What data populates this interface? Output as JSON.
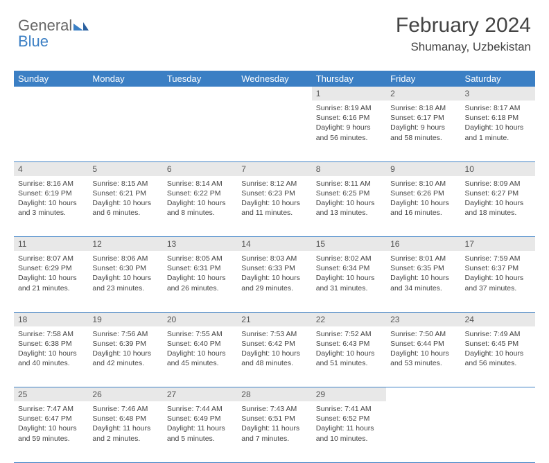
{
  "logo": {
    "text1": "General",
    "text2": "Blue"
  },
  "header": {
    "month": "February 2024",
    "location": "Shumanay, Uzbekistan"
  },
  "colors": {
    "header_bg": "#3b7fc4",
    "header_text": "#ffffff",
    "daynum_bg": "#e8e8e8",
    "border": "#3b7fc4",
    "body_text": "#444444",
    "page_bg": "#ffffff"
  },
  "fonts": {
    "title_size": 30,
    "location_size": 17,
    "dayheader_size": 13,
    "cell_size": 10.5
  },
  "dayHeaders": [
    "Sunday",
    "Monday",
    "Tuesday",
    "Wednesday",
    "Thursday",
    "Friday",
    "Saturday"
  ],
  "weeks": [
    [
      null,
      null,
      null,
      null,
      {
        "n": "1",
        "sr": "8:19 AM",
        "ss": "6:16 PM",
        "dl": "9 hours and 56 minutes."
      },
      {
        "n": "2",
        "sr": "8:18 AM",
        "ss": "6:17 PM",
        "dl": "9 hours and 58 minutes."
      },
      {
        "n": "3",
        "sr": "8:17 AM",
        "ss": "6:18 PM",
        "dl": "10 hours and 1 minute."
      }
    ],
    [
      {
        "n": "4",
        "sr": "8:16 AM",
        "ss": "6:19 PM",
        "dl": "10 hours and 3 minutes."
      },
      {
        "n": "5",
        "sr": "8:15 AM",
        "ss": "6:21 PM",
        "dl": "10 hours and 6 minutes."
      },
      {
        "n": "6",
        "sr": "8:14 AM",
        "ss": "6:22 PM",
        "dl": "10 hours and 8 minutes."
      },
      {
        "n": "7",
        "sr": "8:12 AM",
        "ss": "6:23 PM",
        "dl": "10 hours and 11 minutes."
      },
      {
        "n": "8",
        "sr": "8:11 AM",
        "ss": "6:25 PM",
        "dl": "10 hours and 13 minutes."
      },
      {
        "n": "9",
        "sr": "8:10 AM",
        "ss": "6:26 PM",
        "dl": "10 hours and 16 minutes."
      },
      {
        "n": "10",
        "sr": "8:09 AM",
        "ss": "6:27 PM",
        "dl": "10 hours and 18 minutes."
      }
    ],
    [
      {
        "n": "11",
        "sr": "8:07 AM",
        "ss": "6:29 PM",
        "dl": "10 hours and 21 minutes."
      },
      {
        "n": "12",
        "sr": "8:06 AM",
        "ss": "6:30 PM",
        "dl": "10 hours and 23 minutes."
      },
      {
        "n": "13",
        "sr": "8:05 AM",
        "ss": "6:31 PM",
        "dl": "10 hours and 26 minutes."
      },
      {
        "n": "14",
        "sr": "8:03 AM",
        "ss": "6:33 PM",
        "dl": "10 hours and 29 minutes."
      },
      {
        "n": "15",
        "sr": "8:02 AM",
        "ss": "6:34 PM",
        "dl": "10 hours and 31 minutes."
      },
      {
        "n": "16",
        "sr": "8:01 AM",
        "ss": "6:35 PM",
        "dl": "10 hours and 34 minutes."
      },
      {
        "n": "17",
        "sr": "7:59 AM",
        "ss": "6:37 PM",
        "dl": "10 hours and 37 minutes."
      }
    ],
    [
      {
        "n": "18",
        "sr": "7:58 AM",
        "ss": "6:38 PM",
        "dl": "10 hours and 40 minutes."
      },
      {
        "n": "19",
        "sr": "7:56 AM",
        "ss": "6:39 PM",
        "dl": "10 hours and 42 minutes."
      },
      {
        "n": "20",
        "sr": "7:55 AM",
        "ss": "6:40 PM",
        "dl": "10 hours and 45 minutes."
      },
      {
        "n": "21",
        "sr": "7:53 AM",
        "ss": "6:42 PM",
        "dl": "10 hours and 48 minutes."
      },
      {
        "n": "22",
        "sr": "7:52 AM",
        "ss": "6:43 PM",
        "dl": "10 hours and 51 minutes."
      },
      {
        "n": "23",
        "sr": "7:50 AM",
        "ss": "6:44 PM",
        "dl": "10 hours and 53 minutes."
      },
      {
        "n": "24",
        "sr": "7:49 AM",
        "ss": "6:45 PM",
        "dl": "10 hours and 56 minutes."
      }
    ],
    [
      {
        "n": "25",
        "sr": "7:47 AM",
        "ss": "6:47 PM",
        "dl": "10 hours and 59 minutes."
      },
      {
        "n": "26",
        "sr": "7:46 AM",
        "ss": "6:48 PM",
        "dl": "11 hours and 2 minutes."
      },
      {
        "n": "27",
        "sr": "7:44 AM",
        "ss": "6:49 PM",
        "dl": "11 hours and 5 minutes."
      },
      {
        "n": "28",
        "sr": "7:43 AM",
        "ss": "6:51 PM",
        "dl": "11 hours and 7 minutes."
      },
      {
        "n": "29",
        "sr": "7:41 AM",
        "ss": "6:52 PM",
        "dl": "11 hours and 10 minutes."
      },
      null,
      null
    ]
  ],
  "labels": {
    "sunrise": "Sunrise:",
    "sunset": "Sunset:",
    "daylight": "Daylight:"
  }
}
